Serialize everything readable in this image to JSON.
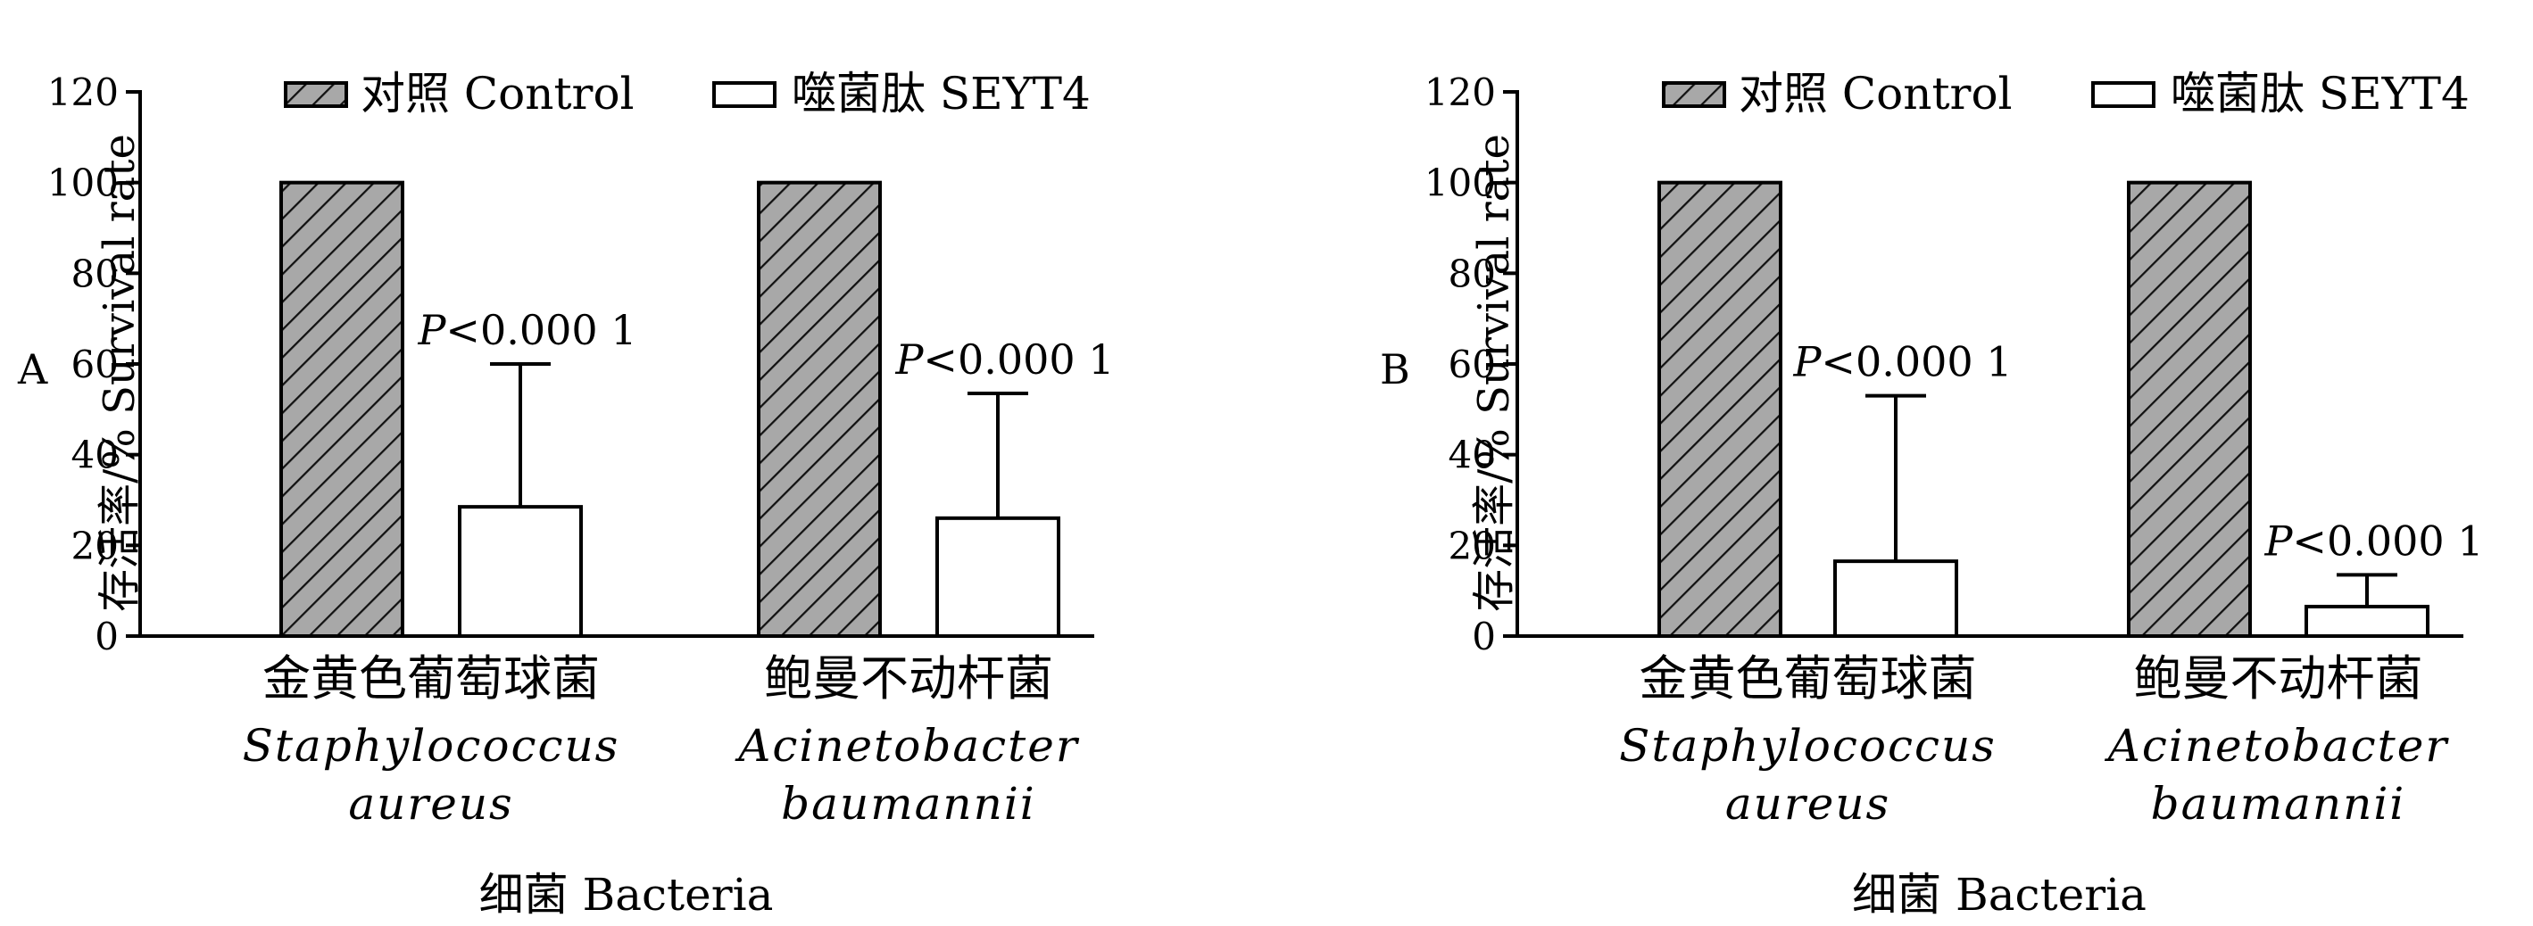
{
  "chart_data": [
    {
      "type": "bar",
      "panel_label": "A",
      "ylabel": "存活率/% Survival rate",
      "xlabel": "细菌 Bacteria",
      "ylim": [
        0,
        120
      ],
      "yticks": [
        0,
        20,
        40,
        60,
        80,
        100,
        120
      ],
      "legend_position": "top",
      "categories": [
        {
          "cn": "金黄色葡萄球菌",
          "latin_1": "Staphylococcus",
          "latin_2": "aureus"
        },
        {
          "cn": "鲍曼不动杆菌",
          "latin_1": "Acinetobacter",
          "latin_2": "baumannii"
        }
      ],
      "series": [
        {
          "name": "对照 Control",
          "values": [
            100,
            100
          ],
          "error": [
            null,
            null
          ],
          "pattern": "hatched",
          "color": "#a8a8a8"
        },
        {
          "name": "噬菌肽 SEYT4",
          "values": [
            28.5,
            26
          ],
          "error": [
            31.5,
            27.5
          ],
          "pattern": "open",
          "color": "#ffffff"
        }
      ],
      "annotations": [
        {
          "category": 0,
          "p_prefix": "P",
          "p_rest": "<0.000 1"
        },
        {
          "category": 1,
          "p_prefix": "P",
          "p_rest": "<0.000 1"
        }
      ]
    },
    {
      "type": "bar",
      "panel_label": "B",
      "ylabel": "存活率/% Survival rate",
      "xlabel": "细菌 Bacteria",
      "ylim": [
        0,
        120
      ],
      "yticks": [
        0,
        20,
        40,
        60,
        80,
        100,
        120
      ],
      "legend_position": "top",
      "categories": [
        {
          "cn": "金黄色葡萄球菌",
          "latin_1": "Staphylococcus",
          "latin_2": "aureus"
        },
        {
          "cn": "鲍曼不动杆菌",
          "latin_1": "Acinetobacter",
          "latin_2": "baumannii"
        }
      ],
      "series": [
        {
          "name": "对照 Control",
          "values": [
            100,
            100
          ],
          "error": [
            null,
            null
          ],
          "pattern": "hatched",
          "color": "#a8a8a8"
        },
        {
          "name": "噬菌肽 SEYT4",
          "values": [
            16.5,
            6.5
          ],
          "error": [
            36.5,
            7
          ],
          "pattern": "open",
          "color": "#ffffff"
        }
      ],
      "annotations": [
        {
          "category": 0,
          "p_prefix": "P",
          "p_rest": "<0.000 1"
        },
        {
          "category": 1,
          "p_prefix": "P",
          "p_rest": "<0.000 1"
        }
      ]
    }
  ]
}
